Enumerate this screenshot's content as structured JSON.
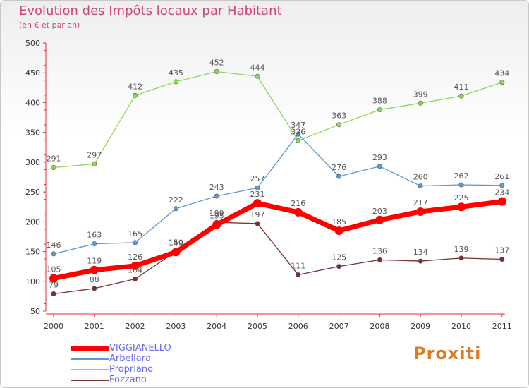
{
  "title": "Evolution des Impôts locaux par Habitant",
  "subtitle": "(en € et par an)",
  "logo_text": "Proxiti",
  "chart_data": {
    "type": "line",
    "x": [
      "2000",
      "2001",
      "2002",
      "2003",
      "2004",
      "2005",
      "2006",
      "2007",
      "2008",
      "2009",
      "2010",
      "2011"
    ],
    "ylim": [
      50,
      500
    ],
    "yticks": [
      50,
      100,
      150,
      200,
      250,
      300,
      350,
      400,
      450,
      500
    ],
    "grid": false,
    "legend_position": "bottom-left",
    "series": [
      {
        "name": "VIGGIANELLO",
        "color": "#ff0000",
        "values": [
          105,
          119,
          126,
          149,
          195,
          231,
          216,
          185,
          203,
          217,
          225,
          234
        ]
      },
      {
        "name": "Arbellara",
        "color": "#5a9ad6",
        "values": [
          146,
          163,
          165,
          222,
          243,
          257,
          347,
          276,
          293,
          260,
          262,
          261
        ]
      },
      {
        "name": "Propriano",
        "color": "#8ed65a",
        "values": [
          291,
          297,
          412,
          435,
          452,
          444,
          336,
          363,
          388,
          399,
          411,
          434
        ]
      },
      {
        "name": "Fozzano",
        "color": "#7a3030",
        "values": [
          79,
          88,
          104,
          150,
          199,
          197,
          111,
          125,
          136,
          134,
          139,
          137
        ]
      }
    ]
  }
}
